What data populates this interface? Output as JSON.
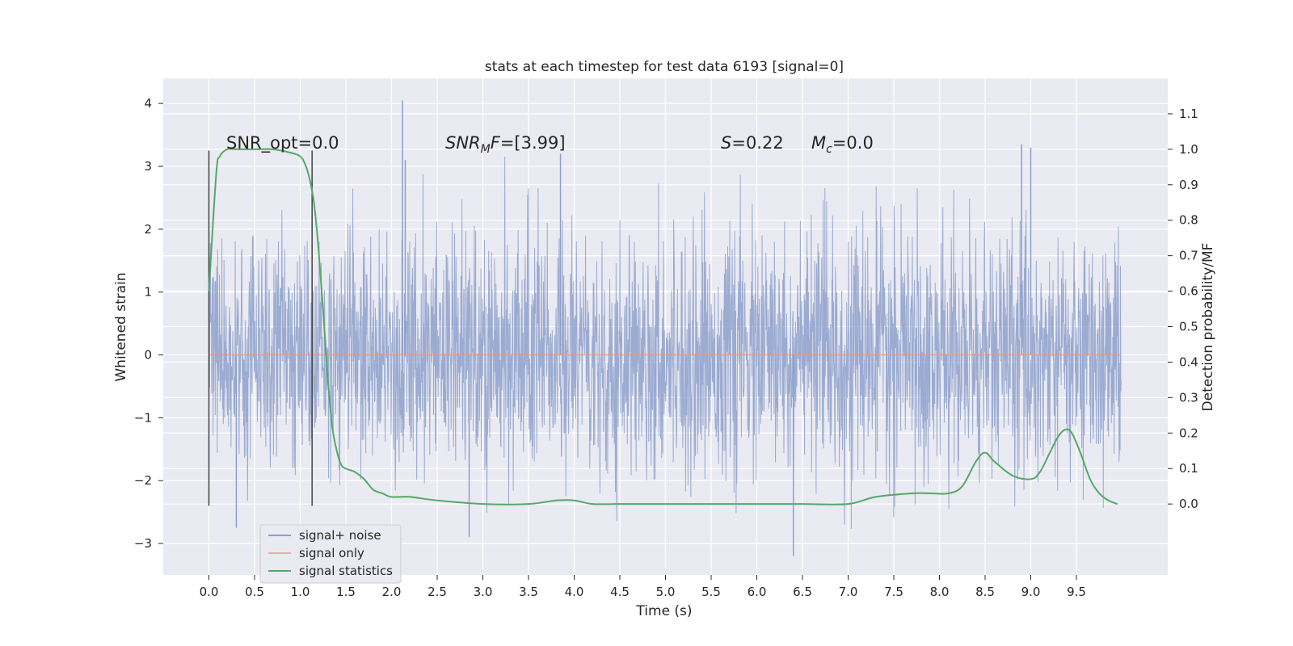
{
  "chart_data": {
    "type": "line",
    "title": "stats at each timestep for test data 6193 [signal=0]",
    "xlabel": "Time (s)",
    "ylabel": "Whitened strain",
    "y2label": "Detection probability/MF",
    "xlim": [
      -0.5,
      10.5
    ],
    "ylim": [
      -3.5,
      4.4
    ],
    "y2lim": [
      -0.2,
      1.2
    ],
    "x_ticks": [
      "0.0",
      "0.5",
      "1.0",
      "1.5",
      "2.0",
      "2.5",
      "3.0",
      "3.5",
      "4.0",
      "4.5",
      "5.0",
      "5.5",
      "6.0",
      "6.5",
      "7.0",
      "7.5",
      "8.0",
      "8.5",
      "9.0",
      "9.5"
    ],
    "y_ticks": [
      "4",
      "3",
      "2",
      "1",
      "0",
      "−1",
      "−2",
      "−3"
    ],
    "y2_ticks": [
      "1.1",
      "1.0",
      "0.9",
      "0.8",
      "0.7",
      "0.6",
      "0.5",
      "0.4",
      "0.3",
      "0.2",
      "0.1",
      "0.0"
    ],
    "grid": true,
    "annotations": {
      "snr_opt": "SNR_opt=0.0",
      "snr_mf": "SNR_MF=[3.99]",
      "s": "S=0.22",
      "mc": "M_c=0.0"
    },
    "vertical_lines_x": [
      0.0,
      1.13
    ],
    "vertical_lines_yrange": [
      -2.4,
      3.25
    ],
    "legend": {
      "position": "lower-left",
      "entries": [
        "signal+ noise",
        "signal only",
        "signal statistics"
      ]
    },
    "colors": {
      "noise": "#8da0cb",
      "signal": "#e9967a",
      "stats": "#55a868",
      "vline": "#444444",
      "background": "#eaeaf2"
    },
    "series": [
      {
        "name": "signal+ noise",
        "x_range": [
          0.0,
          9.99
        ],
        "core_amplitude": [
          -1.35,
          1.55
        ],
        "tail_extremes": [
          -3.2,
          4.05
        ],
        "notable_peaks": [
          [
            2.12,
            4.05
          ],
          [
            2.15,
            3.1
          ],
          [
            8.9,
            3.35
          ],
          [
            9.0,
            3.3
          ],
          [
            3.85,
            3.2
          ],
          [
            6.4,
            -3.2
          ],
          [
            0.3,
            -2.75
          ],
          [
            2.85,
            -2.9
          ]
        ]
      },
      {
        "name": "signal only",
        "x": [
          0.0,
          9.99
        ],
        "y": [
          0.0,
          0.0
        ]
      },
      {
        "name": "signal statistics",
        "axis": "right",
        "x": [
          0.0,
          0.08,
          0.12,
          0.2,
          0.3,
          0.5,
          0.7,
          0.9,
          1.0,
          1.05,
          1.1,
          1.15,
          1.2,
          1.25,
          1.3,
          1.35,
          1.4,
          1.45,
          1.5,
          1.6,
          1.7,
          1.8,
          1.9,
          2.0,
          2.2,
          2.5,
          3.0,
          3.5,
          3.8,
          4.0,
          4.2,
          4.5,
          5.0,
          5.5,
          6.0,
          6.5,
          7.0,
          7.3,
          7.7,
          7.9,
          8.1,
          8.25,
          8.4,
          8.5,
          8.6,
          8.8,
          9.0,
          9.1,
          9.2,
          9.3,
          9.38,
          9.45,
          9.55,
          9.65,
          9.75,
          9.85,
          9.95
        ],
        "y": [
          0.6,
          0.93,
          0.98,
          1.0,
          1.0,
          1.0,
          1.0,
          0.99,
          0.98,
          0.96,
          0.92,
          0.85,
          0.72,
          0.55,
          0.36,
          0.22,
          0.15,
          0.11,
          0.1,
          0.09,
          0.07,
          0.04,
          0.03,
          0.02,
          0.02,
          0.01,
          0.0,
          0.0,
          0.01,
          0.01,
          0.0,
          0.0,
          0.0,
          0.0,
          0.0,
          0.0,
          0.0,
          0.02,
          0.03,
          0.03,
          0.03,
          0.05,
          0.12,
          0.145,
          0.12,
          0.08,
          0.07,
          0.09,
          0.14,
          0.19,
          0.21,
          0.2,
          0.14,
          0.07,
          0.03,
          0.01,
          0.0
        ]
      }
    ]
  }
}
